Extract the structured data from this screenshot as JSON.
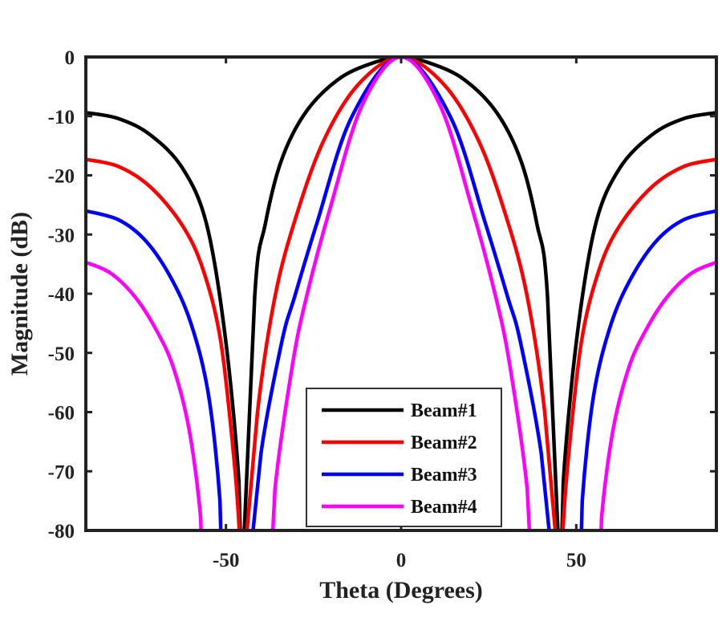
{
  "chart_data": {
    "type": "line",
    "title": "",
    "xlabel": "Theta (Degrees)",
    "ylabel": "Magnitude (dB)",
    "xlim": [
      -90,
      90
    ],
    "ylim": [
      -80,
      0
    ],
    "xticks": [
      -50,
      0,
      50
    ],
    "xtick_labels": [
      "-50",
      "0",
      "50"
    ],
    "yticks": [
      0,
      -10,
      -20,
      -30,
      -40,
      -50,
      -60,
      -70,
      -80
    ],
    "ytick_labels": [
      "0",
      "-10",
      "-20",
      "-30",
      "-40",
      "-50",
      "-60",
      "-70",
      "-80"
    ],
    "grid": false,
    "legend_position": "bottom-center",
    "symmetric_about_zero": true,
    "series": [
      {
        "name": "Beam#1",
        "color": "#000000",
        "x": [
          -90,
          -80.7,
          -71.5,
          -62.4,
          -55.5,
          -50.2,
          -46.3,
          -45.5,
          -41.8,
          -38.8,
          -34.2,
          -27.3,
          -18.2,
          -9,
          0
        ],
        "y": [
          -9.4,
          -10.4,
          -13.2,
          -18.8,
          -28.3,
          -47.3,
          -71.7,
          -90,
          -40.5,
          -28.3,
          -17.5,
          -9.4,
          -3.9,
          -1.2,
          0
        ]
      },
      {
        "name": "Beam#2",
        "color": "#ff0000",
        "x": [
          -90,
          -80.7,
          -71.5,
          -62.4,
          -56.5,
          -51.5,
          -47.7,
          -46.2,
          -45.5,
          -41,
          -36,
          -30,
          -22,
          -12,
          0
        ],
        "y": [
          -17.3,
          -18.5,
          -22,
          -28.5,
          -36,
          -48,
          -68,
          -80,
          -90,
          -60,
          -40.5,
          -27,
          -14,
          -4.5,
          0
        ]
      },
      {
        "name": "Beam#3",
        "color": "#0000ff",
        "x": [
          -90,
          -80.7,
          -73,
          -66,
          -60,
          -55,
          -51.7,
          -51,
          -44,
          -40,
          -34,
          -30.4,
          -24,
          -14,
          0
        ],
        "y": [
          -26,
          -27.5,
          -31,
          -37,
          -45,
          -57,
          -75,
          -90,
          -90,
          -67,
          -48,
          -40.5,
          -28,
          -10,
          0
        ]
      },
      {
        "name": "Beam#4",
        "color": "#ff00ff",
        "x": [
          -90,
          -83,
          -76,
          -70,
          -65,
          -60.5,
          -57.2,
          -56.6,
          -37.5,
          -36,
          -31,
          -27,
          -20,
          -11,
          0
        ],
        "y": [
          -34.7,
          -36.5,
          -40.5,
          -46,
          -52.5,
          -63,
          -78,
          -90,
          -90,
          -73,
          -52,
          -40.5,
          -25,
          -8,
          0
        ]
      }
    ]
  }
}
